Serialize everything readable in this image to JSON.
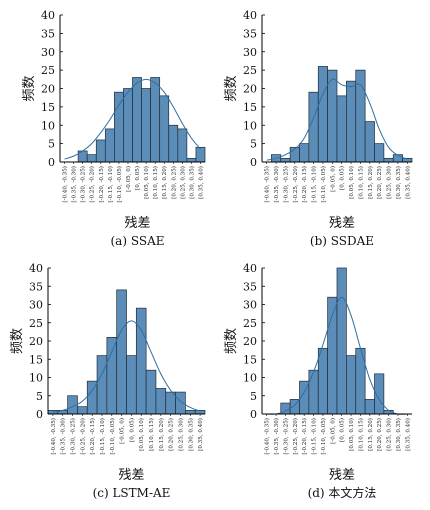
{
  "colors": {
    "bar_fill": "#5b8db8",
    "bar_stroke": "#1f2d3a",
    "curve": "#2e6fa3",
    "axis": "#000000"
  },
  "chart_data": [
    {
      "type": "bar",
      "caption": "(a) SSAE",
      "xlabel": "残差",
      "ylabel": "频数",
      "ylim": [
        0,
        40
      ],
      "yticks": [
        0,
        5,
        10,
        15,
        20,
        25,
        30,
        35,
        40
      ],
      "categories": [
        "[-0.40, -0.35)",
        "[-0.35, -0.30)",
        "[-0.30, -0.25)",
        "[-0.25, -0.20)",
        "[-0.20, -0.15)",
        "[-0.15, -0.10)",
        "[-0.10, -0.05)",
        "[-0.05, 0)",
        "[0, 0.05)",
        "[0.05, 0.10)",
        "[0.10, 0.15)",
        "[0.15, 0.20)",
        "[0.20, 0.25)",
        "[0.25, 0.30)",
        "[0.30, 0.35)",
        "[0.35, 0.40)"
      ],
      "values": [
        0,
        0,
        3,
        2,
        6,
        9,
        19,
        20,
        23,
        20,
        23,
        18,
        10,
        9,
        1,
        4
      ],
      "curve": [
        0.8,
        1.6,
        3.0,
        5.0,
        8.0,
        11.5,
        15.5,
        19.0,
        21.5,
        22.5,
        21.5,
        19.0,
        15.0,
        10.5,
        6.5,
        3.5
      ]
    },
    {
      "type": "bar",
      "caption": "(b) SSDAE",
      "xlabel": "残差",
      "ylabel": "频数",
      "ylim": [
        0,
        40
      ],
      "yticks": [
        0,
        5,
        10,
        15,
        20,
        25,
        30,
        35,
        40
      ],
      "categories": [
        "[-0.40, -0.35)",
        "[-0.35, -0.30)",
        "[-0.30, -0.25)",
        "[-0.25, -0.20)",
        "[-0.20, -0.15)",
        "[-0.15, -0.10)",
        "[-0.10, -0.05)",
        "[-0.05, 0)",
        "[0, 0.05)",
        "[0.05, 0.10)",
        "[0.10, 0.15)",
        "[0.15, 0.20)",
        "[0.20, 0.25)",
        "[0.25, 0.30)",
        "[0.30, 0.35)",
        "[0.35, 0.40)"
      ],
      "values": [
        0,
        2,
        1,
        4,
        5,
        19,
        26,
        25,
        18,
        22,
        25,
        11,
        5,
        1,
        2,
        1
      ],
      "curve": [
        0.5,
        1.0,
        2.0,
        3.5,
        6.5,
        12.0,
        18.5,
        22.5,
        21.0,
        20.5,
        21.0,
        16.0,
        9.0,
        4.0,
        1.8,
        0.8
      ]
    },
    {
      "type": "bar",
      "caption": "(c) LSTM-AE",
      "xlabel": "残差",
      "ylabel": "频数",
      "ylim": [
        0,
        40
      ],
      "yticks": [
        0,
        5,
        10,
        15,
        20,
        25,
        30,
        35,
        40
      ],
      "categories": [
        "[-0.40, -0.35)",
        "[-0.35, -0.30)",
        "[-0.30, -0.25)",
        "[-0.25, -0.20)",
        "[-0.20, -0.15)",
        "[-0.15, -0.10)",
        "[-0.10, -0.05)",
        "[-0.05, 0)",
        "[0, 0.05)",
        "[0.05, 0.10)",
        "[0.10, 0.15)",
        "[0.15, 0.20)",
        "[0.20, 0.25)",
        "[0.25, 0.30)",
        "[0.30, 0.35)",
        "[0.35, 0.40)"
      ],
      "values": [
        1,
        1,
        5,
        2,
        9,
        16,
        21,
        34,
        16,
        29,
        12,
        7,
        6,
        6,
        1,
        1
      ],
      "curve": [
        0.5,
        1.0,
        2.0,
        3.5,
        6.5,
        11.0,
        17.0,
        23.0,
        25.5,
        23.0,
        17.0,
        11.0,
        6.5,
        3.5,
        1.8,
        0.8
      ]
    },
    {
      "type": "bar",
      "caption": "(d) 本文方法",
      "xlabel": "残差",
      "ylabel": "频数",
      "ylim": [
        0,
        40
      ],
      "yticks": [
        0,
        5,
        10,
        15,
        20,
        25,
        30,
        35,
        40
      ],
      "categories": [
        "[-0.40, -0.35)",
        "[-0.35, -0.30)",
        "[-0.30, -0.25)",
        "[-0.25, -0.20)",
        "[-0.20, -0.15)",
        "[-0.15, -0.10)",
        "[-0.10, -0.05)",
        "[-0.05, 0)",
        "[0, 0.05)",
        "[0.05, 0.10)",
        "[0.10, 0.15)",
        "[0.15, 0.20)",
        "[0.20, 0.25)",
        "[0.25, 0.30)",
        "[0.30, 0.35)",
        "[0.35, 0.40)"
      ],
      "values": [
        0,
        0,
        3,
        4,
        9,
        12,
        18,
        32,
        40,
        16,
        18,
        4,
        11,
        1,
        0,
        0
      ],
      "curve": [
        0,
        0,
        0.8,
        2.5,
        6.0,
        11.5,
        19.0,
        27.0,
        32.0,
        27.0,
        18.0,
        9.5,
        4.0,
        1.0,
        0,
        0
      ]
    }
  ]
}
